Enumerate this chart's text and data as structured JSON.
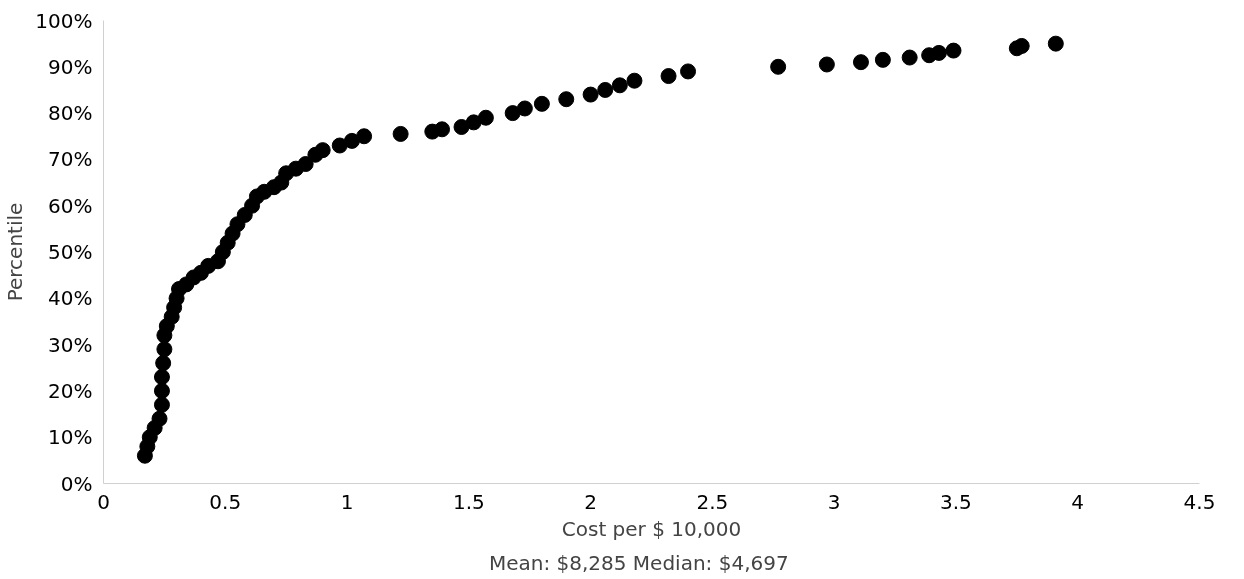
{
  "chart_data": {
    "type": "scatter",
    "xlabel": "Cost per $ 10,000",
    "ylabel": "Percentile",
    "annotations": [
      "Mean: $8,285    Median:  $4,697"
    ],
    "x": [
      0.17,
      0.18,
      0.19,
      0.21,
      0.23,
      0.24,
      0.24,
      0.24,
      0.245,
      0.25,
      0.25,
      0.26,
      0.28,
      0.29,
      0.3,
      0.31,
      0.34,
      0.37,
      0.4,
      0.43,
      0.47,
      0.49,
      0.51,
      0.53,
      0.55,
      0.58,
      0.61,
      0.63,
      0.66,
      0.7,
      0.73,
      0.75,
      0.79,
      0.83,
      0.87,
      0.9,
      0.97,
      1.02,
      1.07,
      1.22,
      1.35,
      1.39,
      1.47,
      1.52,
      1.57,
      1.68,
      1.73,
      1.8,
      1.9,
      2.0,
      2.06,
      2.12,
      2.18,
      2.32,
      2.4,
      2.77,
      2.97,
      3.11,
      3.2,
      3.31,
      3.39,
      3.43,
      3.49,
      3.75,
      3.77,
      3.91
    ],
    "series": [
      {
        "color": "#000000",
        "values": [
          6,
          8,
          10,
          12,
          14,
          17,
          20,
          23,
          26,
          29,
          32,
          34,
          36,
          38,
          40,
          42,
          43,
          44.5,
          45.5,
          47,
          48,
          50,
          52,
          54,
          56,
          58,
          60,
          62,
          63,
          64,
          65,
          67,
          68,
          69,
          71,
          72,
          73,
          74,
          75,
          75.5,
          76,
          76.5,
          77,
          78,
          79,
          80,
          81,
          82,
          83,
          84,
          85,
          86,
          87,
          88,
          89,
          90,
          90.5,
          91,
          91.5,
          92,
          92.5,
          93,
          93.5,
          94,
          94.5,
          95
        ]
      }
    ],
    "marker": "circle",
    "xlim": [
      0,
      4.5
    ],
    "xticks": [
      0,
      0.5,
      1,
      1.5,
      2,
      2.5,
      3,
      3.5,
      4,
      4.5
    ],
    "ylim": [
      0,
      100
    ],
    "yticks": [
      {
        "value": 0,
        "label": "0%"
      },
      {
        "value": 10,
        "label": "10%"
      },
      {
        "value": 20,
        "label": "20%"
      },
      {
        "value": 30,
        "label": "30%"
      },
      {
        "value": 40,
        "label": "40%"
      },
      {
        "value": 50,
        "label": "50%"
      },
      {
        "value": 60,
        "label": "60%"
      },
      {
        "value": 70,
        "label": "70%"
      },
      {
        "value": 80,
        "label": "80%"
      },
      {
        "value": 90,
        "label": "90%"
      },
      {
        "value": 100,
        "label": "100%"
      }
    ]
  }
}
